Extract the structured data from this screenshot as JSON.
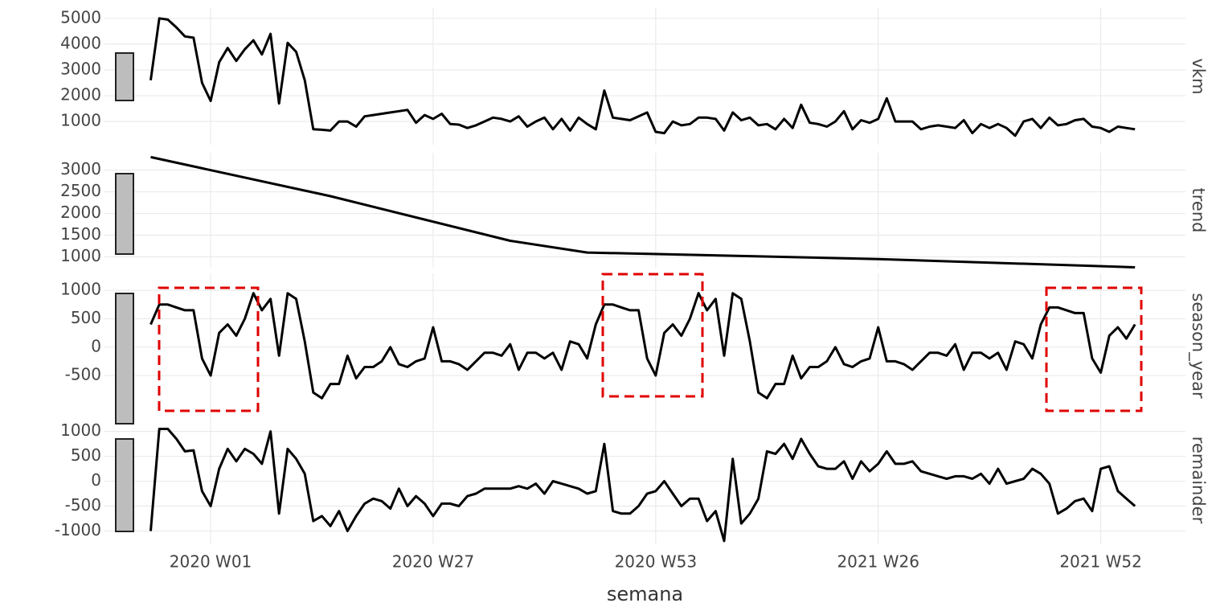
{
  "chart_data": [
    {
      "type": "line",
      "panel_label": "vkm",
      "color": "#000000",
      "grid": true,
      "xlim": [
        -12.4,
        113.9
      ],
      "ylim": [
        100,
        5400
      ],
      "yticks": [
        1000,
        2000,
        3000,
        4000,
        5000
      ],
      "x": [
        -7,
        -6,
        -5,
        -4,
        -3,
        -2,
        -1,
        0,
        1,
        2,
        3,
        4,
        5,
        6,
        7,
        8,
        9,
        10,
        11,
        12,
        13,
        14,
        15,
        16,
        17,
        18,
        19,
        20,
        21,
        22,
        23,
        24,
        25,
        26,
        27,
        28,
        29,
        30,
        31,
        32,
        33,
        34,
        35,
        36,
        37,
        38,
        39,
        40,
        41,
        42,
        43,
        44,
        45,
        46,
        47,
        48,
        49,
        50,
        51,
        52,
        53,
        54,
        55,
        56,
        57,
        58,
        59,
        60,
        61,
        62,
        63,
        64,
        65,
        66,
        67,
        68,
        69,
        70,
        71,
        72,
        73,
        74,
        75,
        76,
        77,
        78,
        79,
        80,
        81,
        82,
        83,
        84,
        85,
        86,
        87,
        88,
        89,
        90,
        91,
        92,
        93,
        94,
        95,
        96,
        97,
        98,
        99,
        100,
        101,
        102,
        103,
        104,
        105,
        106,
        107,
        108
      ],
      "values": [
        2600,
        5000,
        4950,
        4650,
        4300,
        4250,
        2500,
        1800,
        3300,
        3850,
        3350,
        3800,
        4150,
        3600,
        4400,
        1700,
        4050,
        3700,
        2600,
        700,
        680,
        650,
        1000,
        1000,
        800,
        1200,
        1250,
        1300,
        1350,
        1400,
        1450,
        950,
        1250,
        1100,
        1300,
        900,
        880,
        750,
        850,
        1000,
        1150,
        1100,
        1000,
        1200,
        800,
        1000,
        1150,
        700,
        1100,
        650,
        1150,
        900,
        700,
        2200,
        1150,
        1100,
        1050,
        1200,
        1350,
        600,
        550,
        1000,
        850,
        900,
        1150,
        1150,
        1100,
        650,
        1350,
        1050,
        1150,
        850,
        900,
        700,
        1100,
        750,
        1650,
        950,
        900,
        800,
        1000,
        1400,
        700,
        1050,
        950,
        1100,
        1900,
        1000,
        1000,
        1000,
        700,
        800,
        850,
        800,
        750,
        1050,
        550,
        900,
        750,
        900,
        750,
        450,
        1000,
        1100,
        750,
        1150,
        850,
        900,
        1050,
        1100,
        800,
        750,
        600,
        800,
        750,
        700
      ]
    },
    {
      "type": "line",
      "panel_label": "trend",
      "color": "#000000",
      "grid": true,
      "xlim": [
        -12.4,
        113.9
      ],
      "ylim": [
        750,
        3400
      ],
      "yticks": [
        1000,
        1500,
        2000,
        2500,
        3000
      ],
      "x": [
        -7,
        14,
        35,
        44,
        78,
        108
      ],
      "values": [
        3300,
        2400,
        1370,
        1100,
        950,
        760
      ]
    },
    {
      "type": "line",
      "panel_label": "season_year",
      "color": "#000000",
      "grid": true,
      "xlim": [
        -12.4,
        113.9
      ],
      "ylim": [
        -1250,
        1300
      ],
      "yticks": [
        -500,
        0,
        500,
        1000
      ],
      "x": [
        -7,
        -6,
        -5,
        -4,
        -3,
        -2,
        -1,
        0,
        1,
        2,
        3,
        4,
        5,
        6,
        7,
        8,
        9,
        10,
        11,
        12,
        13,
        14,
        15,
        16,
        17,
        18,
        19,
        20,
        21,
        22,
        23,
        24,
        25,
        26,
        27,
        28,
        29,
        30,
        31,
        32,
        33,
        34,
        35,
        36,
        37,
        38,
        39,
        40,
        41,
        42,
        43,
        44,
        45,
        46,
        47,
        48,
        49,
        50,
        51,
        52,
        53,
        54,
        55,
        56,
        57,
        58,
        59,
        60,
        61,
        62,
        63,
        64,
        65,
        66,
        67,
        68,
        69,
        70,
        71,
        72,
        73,
        74,
        75,
        76,
        77,
        78,
        79,
        80,
        81,
        82,
        83,
        84,
        85,
        86,
        87,
        88,
        89,
        90,
        91,
        92,
        93,
        94,
        95,
        96,
        97,
        98,
        99,
        100,
        101,
        102,
        103,
        104,
        105,
        106,
        107,
        108
      ],
      "values": [
        400,
        750,
        750,
        700,
        650,
        650,
        -200,
        -500,
        250,
        400,
        200,
        500,
        950,
        650,
        850,
        -150,
        950,
        850,
        100,
        -800,
        -900,
        -650,
        -650,
        -150,
        -550,
        -350,
        -350,
        -250,
        0,
        -300,
        -350,
        -250,
        -200,
        350,
        -250,
        -250,
        -300,
        -400,
        -250,
        -100,
        -100,
        -150,
        50,
        -400,
        -100,
        -100,
        -200,
        -100,
        -400,
        100,
        50,
        -200,
        400,
        750,
        750,
        700,
        650,
        650,
        -200,
        -500,
        250,
        400,
        200,
        500,
        950,
        650,
        850,
        -150,
        950,
        850,
        100,
        -800,
        -900,
        -650,
        -650,
        -150,
        -550,
        -350,
        -350,
        -250,
        0,
        -300,
        -350,
        -250,
        -200,
        350,
        -250,
        -250,
        -300,
        -400,
        -250,
        -100,
        -100,
        -150,
        50,
        -400,
        -100,
        -100,
        -200,
        -100,
        -400,
        100,
        50,
        -200,
        400,
        700,
        700,
        650,
        600,
        600,
        -200,
        -450,
        200,
        350,
        150,
        400
      ]
    },
    {
      "type": "line",
      "panel_label": "remainder",
      "color": "#000000",
      "grid": true,
      "xlim": [
        -12.4,
        113.9
      ],
      "ylim": [
        -1250,
        1300
      ],
      "yticks": [
        -1000,
        -500,
        0,
        500,
        1000
      ],
      "xticks": [
        {
          "value": 0,
          "label": "2020 W01"
        },
        {
          "value": 26,
          "label": "2020 W27"
        },
        {
          "value": 52,
          "label": "2020 W53"
        },
        {
          "value": 78,
          "label": "2021 W26"
        },
        {
          "value": 104,
          "label": "2021 W52"
        }
      ],
      "x_label": "semana",
      "x": [
        -7,
        -6,
        -5,
        -4,
        -3,
        -2,
        -1,
        0,
        1,
        2,
        3,
        4,
        5,
        6,
        7,
        8,
        9,
        10,
        11,
        12,
        13,
        14,
        15,
        16,
        17,
        18,
        19,
        20,
        21,
        22,
        23,
        24,
        25,
        26,
        27,
        28,
        29,
        30,
        31,
        32,
        33,
        34,
        35,
        36,
        37,
        38,
        39,
        40,
        41,
        42,
        43,
        44,
        45,
        46,
        47,
        48,
        49,
        50,
        51,
        52,
        53,
        54,
        55,
        56,
        57,
        58,
        59,
        60,
        61,
        62,
        63,
        64,
        65,
        66,
        67,
        68,
        69,
        70,
        71,
        72,
        73,
        74,
        75,
        76,
        77,
        78,
        79,
        80,
        81,
        82,
        83,
        84,
        85,
        86,
        87,
        88,
        89,
        90,
        91,
        92,
        93,
        94,
        95,
        96,
        97,
        98,
        99,
        100,
        101,
        102,
        103,
        104,
        105,
        106,
        107,
        108
      ],
      "values": [
        -1000,
        1050,
        1050,
        850,
        600,
        620,
        -200,
        -500,
        250,
        650,
        400,
        650,
        550,
        350,
        1000,
        -650,
        650,
        450,
        150,
        -800,
        -700,
        -900,
        -600,
        -1000,
        -700,
        -450,
        -350,
        -400,
        -550,
        -150,
        -500,
        -300,
        -450,
        -700,
        -450,
        -450,
        -500,
        -300,
        -250,
        -150,
        -150,
        -150,
        -150,
        -100,
        -150,
        -50,
        -250,
        0,
        -50,
        -100,
        -150,
        -250,
        -200,
        750,
        -600,
        -650,
        -650,
        -500,
        -250,
        -200,
        0,
        -250,
        -500,
        -350,
        -350,
        -800,
        -600,
        -1200,
        450,
        -850,
        -650,
        -350,
        600,
        550,
        750,
        450,
        850,
        550,
        300,
        250,
        250,
        400,
        50,
        400,
        200,
        350,
        600,
        350,
        350,
        400,
        200,
        150,
        100,
        50,
        100,
        100,
        50,
        150,
        -50,
        250,
        -50,
        0,
        50,
        250,
        150,
        -50,
        -650,
        -550,
        -400,
        -350,
        -600,
        250,
        300,
        -200,
        -350,
        -500
      ]
    }
  ]
}
